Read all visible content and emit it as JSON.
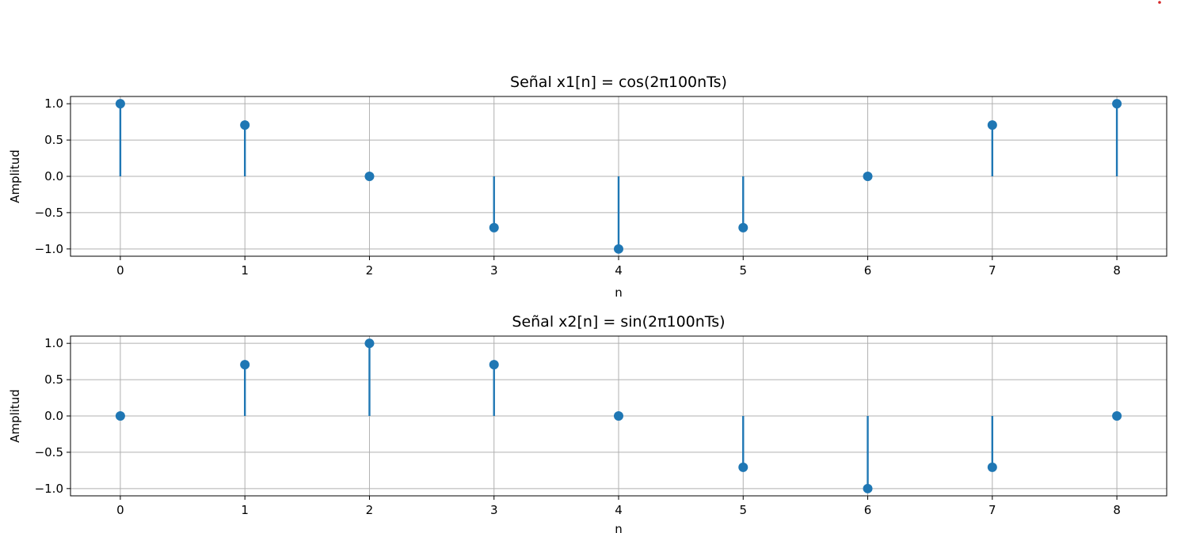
{
  "chart_data": [
    {
      "type": "stem",
      "title": "Señal x1[n] = cos(2π100nTs)",
      "xlabel": "n",
      "ylabel": "Amplitud",
      "x": [
        0,
        1,
        2,
        3,
        4,
        5,
        6,
        7,
        8
      ],
      "values": [
        1.0,
        0.7071,
        0.0,
        -0.7071,
        -1.0,
        -0.7071,
        0.0,
        0.7071,
        1.0
      ],
      "xlim": [
        -0.4,
        8.4
      ],
      "ylim": [
        -1.1,
        1.1
      ],
      "xticks": [
        0,
        1,
        2,
        3,
        4,
        5,
        6,
        7,
        8
      ],
      "yticks": [
        1.0,
        0.5,
        0.0,
        -0.5,
        -1.0
      ],
      "ytick_labels": [
        "1.0",
        "0.5",
        "0.0",
        "−0.5",
        "−1.0"
      ],
      "grid": true,
      "color": "#1f77b4"
    },
    {
      "type": "stem",
      "title": "Señal x2[n] = sin(2π100nTs)",
      "xlabel": "n",
      "ylabel": "Amplitud",
      "x": [
        0,
        1,
        2,
        3,
        4,
        5,
        6,
        7,
        8
      ],
      "values": [
        0.0,
        0.7071,
        1.0,
        0.7071,
        0.0,
        -0.7071,
        -1.0,
        -0.7071,
        0.0
      ],
      "xlim": [
        -0.4,
        8.4
      ],
      "ylim": [
        -1.1,
        1.1
      ],
      "xticks": [
        0,
        1,
        2,
        3,
        4,
        5,
        6,
        7,
        8
      ],
      "yticks": [
        1.0,
        0.5,
        0.0,
        -0.5,
        -1.0
      ],
      "ytick_labels": [
        "1.0",
        "0.5",
        "0.0",
        "−0.5",
        "−1.0"
      ],
      "grid": true,
      "color": "#1f77b4"
    }
  ],
  "colors": {
    "series": "#1f77b4",
    "grid": "#b0b0b0",
    "axes": "#000000",
    "marker_top_right": "#d62728"
  }
}
